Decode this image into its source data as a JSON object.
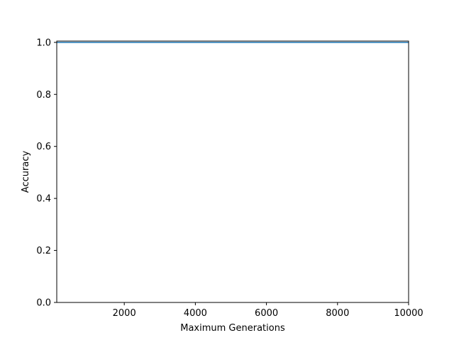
{
  "chart_data": {
    "type": "line",
    "title": "",
    "xlabel": "Maximum Generations",
    "ylabel": "Accuracy",
    "xlim": [
      100,
      10000
    ],
    "ylim": [
      0,
      1.005
    ],
    "xticks": [
      2000,
      4000,
      6000,
      8000,
      10000
    ],
    "xtick_labels": [
      "2000",
      "4000",
      "6000",
      "8000",
      "10000"
    ],
    "yticks": [
      0.0,
      0.2,
      0.4,
      0.6,
      0.8,
      1.0
    ],
    "ytick_labels": [
      "0.0",
      "0.2",
      "0.4",
      "0.6",
      "0.8",
      "1.0"
    ],
    "grid": false,
    "series": [
      {
        "color": "#1f77b4",
        "x": [
          100,
          10000
        ],
        "y": [
          1.0,
          1.0
        ]
      }
    ]
  }
}
